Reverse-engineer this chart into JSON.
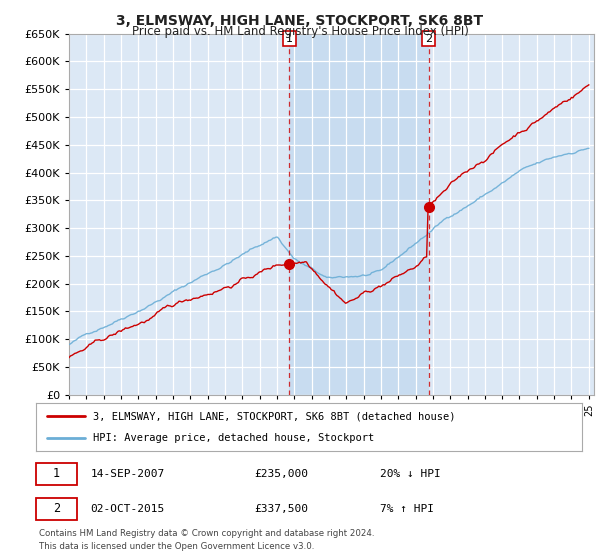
{
  "title": "3, ELMSWAY, HIGH LANE, STOCKPORT, SK6 8BT",
  "subtitle": "Price paid vs. HM Land Registry's House Price Index (HPI)",
  "legend_line1": "3, ELMSWAY, HIGH LANE, STOCKPORT, SK6 8BT (detached house)",
  "legend_line2": "HPI: Average price, detached house, Stockport",
  "annotation1_date": "14-SEP-2007",
  "annotation1_price": "£235,000",
  "annotation1_hpi": "20% ↓ HPI",
  "annotation2_date": "02-OCT-2015",
  "annotation2_price": "£337,500",
  "annotation2_hpi": "7% ↑ HPI",
  "footnote1": "Contains HM Land Registry data © Crown copyright and database right 2024.",
  "footnote2": "This data is licensed under the Open Government Licence v3.0.",
  "hpi_color": "#6baed6",
  "price_color": "#cc0000",
  "dashed_line_color": "#cc0000",
  "ylim_min": 0,
  "ylim_max": 650000,
  "sale1_year": 2007.71,
  "sale1_value": 235000,
  "sale2_year": 2015.75,
  "sale2_value": 337500,
  "background_color": "#ffffff",
  "grid_color": "#cccccc",
  "plot_bg_color": "#dce8f5",
  "highlight_color": "#c8dcf0"
}
